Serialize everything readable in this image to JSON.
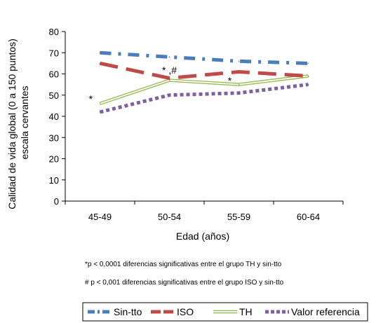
{
  "chart_data": {
    "type": "line",
    "categories": [
      "45-49",
      "50-54",
      "55-59",
      "60-64"
    ],
    "xlabel": "Edad (años)",
    "ylabel_lines": [
      "Calidad de vida global (0 a 150 puntos)",
      "escala cervantes"
    ],
    "ylim": [
      0,
      80
    ],
    "yticks": [
      0,
      10,
      20,
      30,
      40,
      50,
      60,
      70,
      80
    ],
    "grid": false,
    "legend_position": "bottom",
    "series": [
      {
        "name": "Sin-tto",
        "values": [
          70,
          68,
          66,
          65
        ],
        "color": "#4a7ebb",
        "style": "dash-dot"
      },
      {
        "name": "ISO",
        "values": [
          65,
          58,
          61,
          59
        ],
        "color": "#be4b48",
        "style": "long-dash"
      },
      {
        "name": "TH",
        "values": [
          46,
          57,
          55,
          59
        ],
        "color": "#98b954",
        "style": "double-line"
      },
      {
        "name": "Valor referencia",
        "values": [
          42,
          50,
          51,
          55
        ],
        "color": "#7d60a0",
        "style": "dotted"
      }
    ],
    "annotations": [
      {
        "text": "*",
        "category": "45-49",
        "y": 48
      },
      {
        "text": "* ,#",
        "category": "50-54",
        "y": 61.5
      },
      {
        "text": "*",
        "category": "55-59",
        "y": 56.5
      }
    ],
    "footnotes": [
      "*p < 0,0001 diferencias significativas entre el grupo TH y sin-tto",
      "# p < 0,001 diferencias significativas entre el grupo ISO y sin-tto"
    ]
  }
}
